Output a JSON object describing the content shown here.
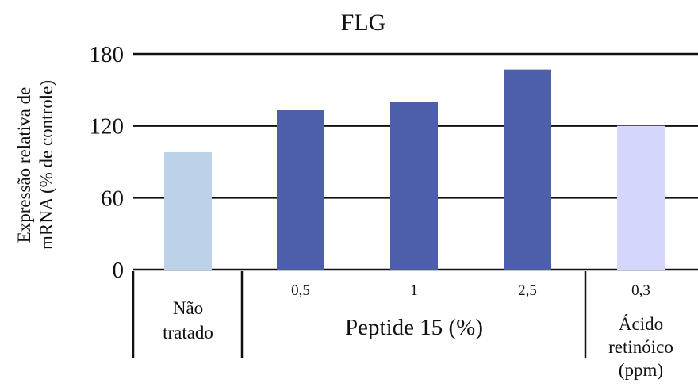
{
  "chart_data": {
    "type": "bar",
    "title": "FLG",
    "ylabel_lines": [
      "Expressão relativa de",
      "mRNA (% de controle)"
    ],
    "ylim": [
      0,
      180
    ],
    "yticks": [
      0,
      60,
      120,
      180
    ],
    "grid": true,
    "categories": [
      "Não tratado",
      "0,5",
      "1",
      "2,5",
      "0,3"
    ],
    "values": [
      98,
      133,
      140,
      167,
      120
    ],
    "bar_colors": [
      "#bcd2e8",
      "#4c5fa8",
      "#4c5fa8",
      "#4c5fa8",
      "#d4d6fb"
    ],
    "groups": [
      {
        "label_lines": [
          "Não",
          "tratado"
        ]
      },
      {
        "label": "Peptide 15 (%)"
      },
      {
        "label_lines": [
          "Ácido",
          "retinóico",
          "(ppm)"
        ]
      }
    ]
  }
}
